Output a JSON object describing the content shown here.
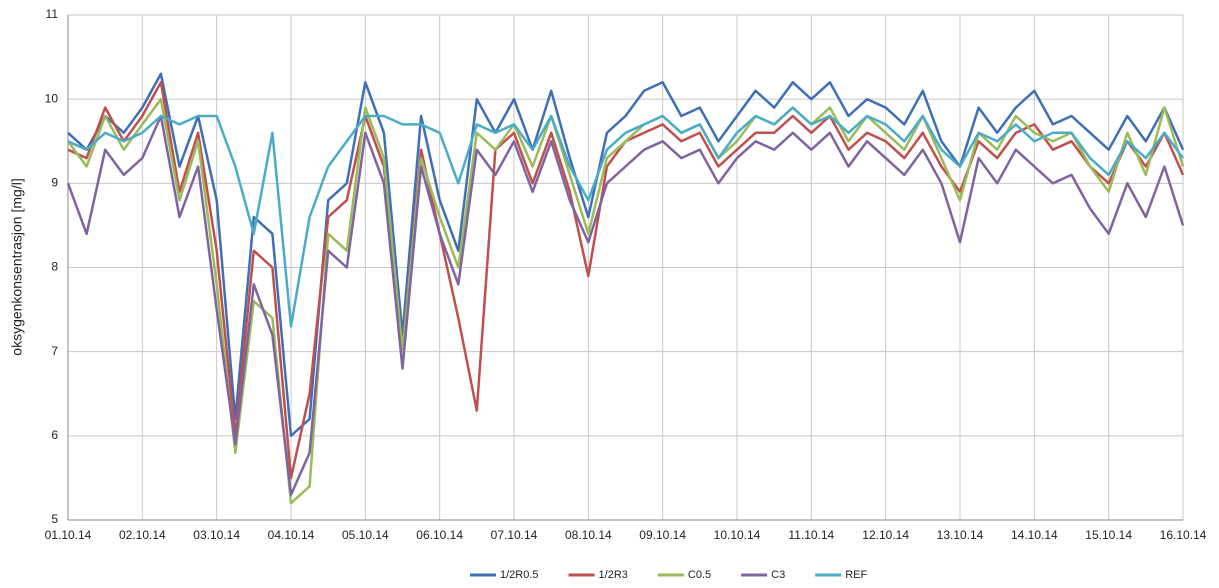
{
  "chart_data": {
    "type": "line",
    "y_label": "oksygenkonsentrasjon  [mg/l]",
    "xlim": [
      0,
      15
    ],
    "xticks": [
      {
        "value": 0,
        "label": "01.10.14"
      },
      {
        "value": 1,
        "label": "02.10.14"
      },
      {
        "value": 2,
        "label": "03.10.14"
      },
      {
        "value": 3,
        "label": "04.10.14"
      },
      {
        "value": 4,
        "label": "05.10.14"
      },
      {
        "value": 5,
        "label": "06.10.14"
      },
      {
        "value": 6,
        "label": "07.10.14"
      },
      {
        "value": 7,
        "label": "08.10.14"
      },
      {
        "value": 8,
        "label": "09.10.14"
      },
      {
        "value": 9,
        "label": "10.10.14"
      },
      {
        "value": 10,
        "label": "11.10.14"
      },
      {
        "value": 11,
        "label": "12.10.14"
      },
      {
        "value": 12,
        "label": "13.10.14"
      },
      {
        "value": 13,
        "label": "14.10.14"
      },
      {
        "value": 14,
        "label": "15.10.14"
      },
      {
        "value": 15,
        "label": "16.10.14"
      }
    ],
    "ylim": [
      5,
      11
    ],
    "yticks": [
      5,
      6,
      7,
      8,
      9,
      10,
      11
    ],
    "grid": true,
    "legend": "bottom",
    "x": [
      0,
      0.25,
      0.5,
      0.75,
      1,
      1.25,
      1.5,
      1.75,
      2,
      2.25,
      2.5,
      2.75,
      3,
      3.25,
      3.5,
      3.75,
      4,
      4.25,
      4.5,
      4.75,
      5,
      5.25,
      5.5,
      5.75,
      6,
      6.25,
      6.5,
      6.75,
      7,
      7.25,
      7.5,
      7.75,
      8,
      8.25,
      8.5,
      8.75,
      9,
      9.25,
      9.5,
      9.75,
      10,
      10.25,
      10.5,
      10.75,
      11,
      11.25,
      11.5,
      11.75,
      12,
      12.25,
      12.5,
      12.75,
      13,
      13.25,
      13.5,
      13.75,
      14,
      14.25,
      14.5,
      14.75,
      15
    ],
    "series": [
      {
        "name": "1/2R0.5",
        "color": "#3f6fb5",
        "values": [
          9.6,
          9.4,
          9.8,
          9.6,
          9.9,
          10.3,
          9.2,
          9.8,
          8.8,
          6.2,
          8.6,
          8.4,
          6.0,
          6.2,
          8.8,
          9.0,
          10.2,
          9.6,
          7.2,
          9.8,
          8.8,
          8.2,
          10.0,
          9.6,
          10.0,
          9.4,
          10.1,
          9.3,
          8.6,
          9.6,
          9.8,
          10.1,
          10.2,
          9.8,
          9.9,
          9.5,
          9.8,
          10.1,
          9.9,
          10.2,
          10.0,
          10.2,
          9.8,
          10.0,
          9.9,
          9.7,
          10.1,
          9.5,
          9.2,
          9.9,
          9.6,
          9.9,
          10.1,
          9.7,
          9.8,
          9.6,
          9.4,
          9.8,
          9.5,
          9.9,
          9.4
        ]
      },
      {
        "name": "1/2R3",
        "color": "#c0504d",
        "values": [
          9.4,
          9.3,
          9.9,
          9.5,
          9.8,
          10.2,
          8.9,
          9.6,
          8.2,
          6.0,
          8.2,
          8.0,
          5.5,
          6.5,
          8.6,
          8.8,
          9.8,
          9.2,
          7.0,
          9.4,
          8.4,
          7.4,
          6.3,
          9.4,
          9.6,
          9.0,
          9.6,
          8.9,
          7.9,
          9.2,
          9.5,
          9.6,
          9.7,
          9.5,
          9.6,
          9.2,
          9.4,
          9.6,
          9.6,
          9.8,
          9.6,
          9.8,
          9.4,
          9.6,
          9.5,
          9.3,
          9.6,
          9.2,
          8.9,
          9.5,
          9.3,
          9.6,
          9.7,
          9.4,
          9.5,
          9.2,
          9.0,
          9.5,
          9.2,
          9.6,
          9.1
        ]
      },
      {
        "name": "C0.5",
        "color": "#9bbb59",
        "values": [
          9.5,
          9.2,
          9.8,
          9.4,
          9.7,
          10.0,
          8.8,
          9.5,
          7.8,
          5.8,
          7.6,
          7.4,
          5.2,
          5.4,
          8.4,
          8.2,
          9.9,
          9.3,
          7.0,
          9.3,
          8.6,
          8.0,
          9.6,
          9.4,
          9.7,
          9.2,
          9.8,
          9.1,
          8.4,
          9.3,
          9.5,
          9.7,
          9.8,
          9.6,
          9.7,
          9.3,
          9.5,
          9.8,
          9.7,
          9.9,
          9.7,
          9.9,
          9.5,
          9.8,
          9.6,
          9.4,
          9.8,
          9.3,
          8.8,
          9.6,
          9.4,
          9.8,
          9.6,
          9.5,
          9.6,
          9.2,
          8.9,
          9.6,
          9.1,
          9.9,
          9.2
        ]
      },
      {
        "name": "C3",
        "color": "#8064a2",
        "values": [
          9.0,
          8.4,
          9.4,
          9.1,
          9.3,
          9.8,
          8.6,
          9.2,
          7.5,
          5.9,
          7.8,
          7.2,
          5.3,
          5.8,
          8.2,
          8.0,
          9.6,
          9.0,
          6.8,
          9.2,
          8.4,
          7.8,
          9.4,
          9.1,
          9.5,
          8.9,
          9.5,
          8.8,
          8.3,
          9.0,
          9.2,
          9.4,
          9.5,
          9.3,
          9.4,
          9.0,
          9.3,
          9.5,
          9.4,
          9.6,
          9.4,
          9.6,
          9.2,
          9.5,
          9.3,
          9.1,
          9.4,
          9.0,
          8.3,
          9.3,
          9.0,
          9.4,
          9.2,
          9.0,
          9.1,
          8.7,
          8.4,
          9.0,
          8.6,
          9.2,
          8.5
        ]
      },
      {
        "name": "REF",
        "color": "#4bacc6",
        "values": [
          9.5,
          9.4,
          9.6,
          9.5,
          9.6,
          9.8,
          9.7,
          9.8,
          9.8,
          9.2,
          8.4,
          9.6,
          7.3,
          8.6,
          9.2,
          9.5,
          9.8,
          9.8,
          9.7,
          9.7,
          9.6,
          9.0,
          9.7,
          9.6,
          9.7,
          9.4,
          9.8,
          9.2,
          8.8,
          9.4,
          9.6,
          9.7,
          9.8,
          9.6,
          9.7,
          9.3,
          9.6,
          9.8,
          9.7,
          9.9,
          9.7,
          9.8,
          9.6,
          9.8,
          9.7,
          9.5,
          9.8,
          9.4,
          9.2,
          9.6,
          9.5,
          9.7,
          9.5,
          9.6,
          9.6,
          9.3,
          9.1,
          9.5,
          9.3,
          9.6,
          9.3
        ]
      }
    ]
  }
}
